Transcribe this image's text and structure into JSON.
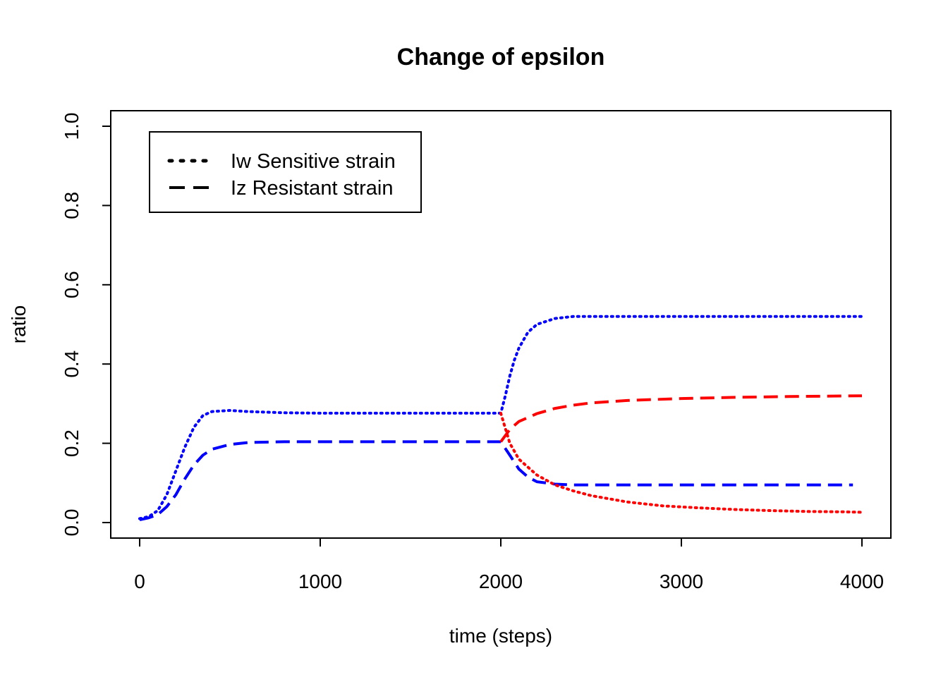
{
  "chart_data": {
    "type": "line",
    "title": "Change of epsilon",
    "xlabel": "time (steps)",
    "ylabel": "ratio",
    "xlim": [
      0,
      4000
    ],
    "ylim": [
      0,
      1
    ],
    "x_ticks": [
      0,
      1000,
      2000,
      3000,
      4000
    ],
    "x_tick_labels": [
      "0",
      "1000",
      "2000",
      "3000",
      "4000"
    ],
    "y_ticks": [
      0,
      0.2,
      0.4,
      0.6,
      0.8,
      1
    ],
    "y_tick_labels": [
      "0.0",
      "0.2",
      "0.4",
      "0.6",
      "0.8",
      "1.0"
    ],
    "grid": false,
    "legend": {
      "position": "top-left",
      "entries": [
        {
          "label": "Iw Sensitive strain",
          "line_style": "dotted"
        },
        {
          "label": "Iz Resistant strain",
          "line_style": "dashed"
        }
      ]
    },
    "series": [
      {
        "color": "#0000ff",
        "line_style": "dotted",
        "points": [
          [
            0,
            0.01
          ],
          [
            50,
            0.015
          ],
          [
            100,
            0.03
          ],
          [
            150,
            0.07
          ],
          [
            200,
            0.13
          ],
          [
            250,
            0.19
          ],
          [
            300,
            0.24
          ],
          [
            350,
            0.27
          ],
          [
            400,
            0.28
          ],
          [
            500,
            0.283
          ],
          [
            600,
            0.28
          ],
          [
            800,
            0.277
          ],
          [
            1000,
            0.276
          ],
          [
            1500,
            0.276
          ],
          [
            2000,
            0.276
          ],
          [
            2025,
            0.32
          ],
          [
            2050,
            0.37
          ],
          [
            2075,
            0.41
          ],
          [
            2100,
            0.44
          ],
          [
            2150,
            0.48
          ],
          [
            2200,
            0.5
          ],
          [
            2300,
            0.515
          ],
          [
            2400,
            0.52
          ],
          [
            2600,
            0.52
          ],
          [
            3000,
            0.52
          ],
          [
            4000,
            0.52
          ]
        ]
      },
      {
        "color": "#0000ff",
        "line_style": "dashed",
        "points": [
          [
            0,
            0.007
          ],
          [
            50,
            0.012
          ],
          [
            100,
            0.02
          ],
          [
            150,
            0.04
          ],
          [
            200,
            0.07
          ],
          [
            250,
            0.11
          ],
          [
            300,
            0.145
          ],
          [
            350,
            0.17
          ],
          [
            400,
            0.185
          ],
          [
            500,
            0.197
          ],
          [
            600,
            0.202
          ],
          [
            800,
            0.204
          ],
          [
            1000,
            0.204
          ],
          [
            1500,
            0.204
          ],
          [
            2000,
            0.204
          ],
          [
            2050,
            0.17
          ],
          [
            2100,
            0.135
          ],
          [
            2150,
            0.115
          ],
          [
            2200,
            0.103
          ],
          [
            2300,
            0.097
          ],
          [
            2400,
            0.095
          ],
          [
            3000,
            0.095
          ],
          [
            3950,
            0.095
          ]
        ]
      },
      {
        "color": "#ff0000",
        "line_style": "dotted",
        "points": [
          [
            2000,
            0.276
          ],
          [
            2050,
            0.2
          ],
          [
            2100,
            0.16
          ],
          [
            2200,
            0.12
          ],
          [
            2300,
            0.095
          ],
          [
            2400,
            0.08
          ],
          [
            2500,
            0.068
          ],
          [
            2700,
            0.052
          ],
          [
            2900,
            0.042
          ],
          [
            3100,
            0.037
          ],
          [
            3300,
            0.033
          ],
          [
            3500,
            0.03
          ],
          [
            3700,
            0.028
          ],
          [
            3900,
            0.027
          ],
          [
            4000,
            0.026
          ]
        ]
      },
      {
        "color": "#ff0000",
        "line_style": "dashed",
        "points": [
          [
            2000,
            0.204
          ],
          [
            2050,
            0.235
          ],
          [
            2100,
            0.255
          ],
          [
            2200,
            0.275
          ],
          [
            2300,
            0.288
          ],
          [
            2400,
            0.296
          ],
          [
            2500,
            0.302
          ],
          [
            2700,
            0.308
          ],
          [
            3000,
            0.313
          ],
          [
            3300,
            0.316
          ],
          [
            3600,
            0.318
          ],
          [
            4000,
            0.32
          ]
        ]
      }
    ]
  }
}
